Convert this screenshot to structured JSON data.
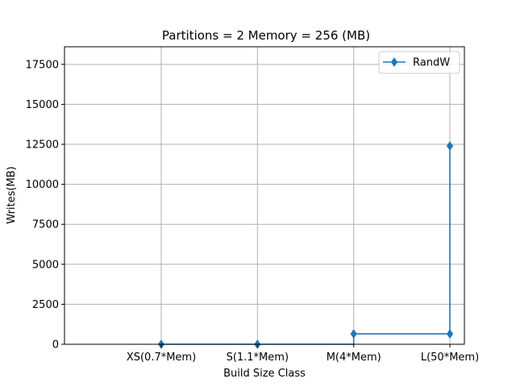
{
  "chart_data": {
    "type": "line",
    "title": "Partitions = 2 Memory = 256 (MB)",
    "xlabel": "Build Size Class",
    "ylabel": "Writes(MB)",
    "categories": [
      "XS(0.7*Mem)",
      "S(1.1*Mem)",
      "M(4*Mem)",
      "L(50*Mem)"
    ],
    "ylim": [
      0,
      18600
    ],
    "yticks": [
      0,
      2500,
      5000,
      7500,
      10000,
      12500,
      15000,
      17500
    ],
    "ytick_labels": [
      "0",
      "2500",
      "5000",
      "7500",
      "10000",
      "12500",
      "15000",
      "17500"
    ],
    "grid": true,
    "legend_position": "top-right",
    "drawstyle": "steps-pre",
    "series": [
      {
        "name": "RandW",
        "color": "#1f77b4",
        "marker": "diamond",
        "values": [
          0,
          0,
          650,
          12400
        ],
        "extra_points": [
          {
            "category_index": 3,
            "value": 650
          }
        ]
      }
    ]
  }
}
